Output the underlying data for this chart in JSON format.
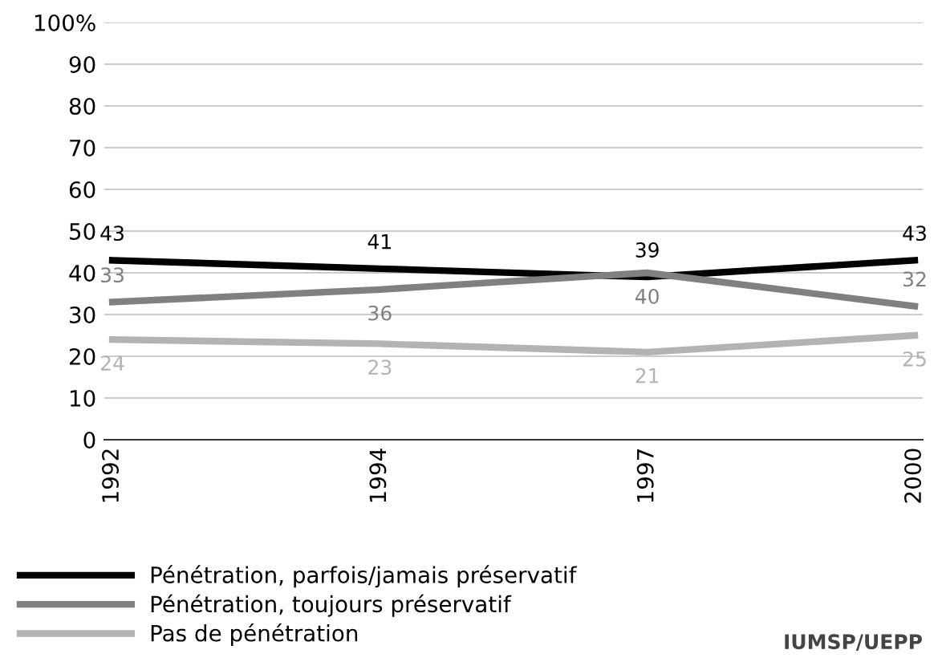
{
  "chart_data": {
    "type": "line",
    "categories": [
      "1992",
      "1994",
      "1997",
      "2000"
    ],
    "series": [
      {
        "name": "Pénétration, parfois/jamais préservatif",
        "color": "#000000",
        "values": [
          43,
          41,
          39,
          43
        ]
      },
      {
        "name": "Pénétration, toujours préservatif",
        "color": "#808080",
        "values": [
          33,
          36,
          40,
          32
        ]
      },
      {
        "name": "Pas de pénétration",
        "color": "#b3b3b3",
        "values": [
          24,
          23,
          21,
          25
        ]
      }
    ],
    "ylim": [
      0,
      100
    ],
    "yticks": [
      0,
      10,
      20,
      30,
      40,
      50,
      60,
      70,
      80,
      90,
      {
        "value": 100,
        "label": "100%"
      }
    ],
    "grid": "y",
    "legend": "bottom left",
    "data_labels": true,
    "marker": "none",
    "line_style": "solid",
    "annotations": [
      "IUMSP/UEPP"
    ]
  }
}
